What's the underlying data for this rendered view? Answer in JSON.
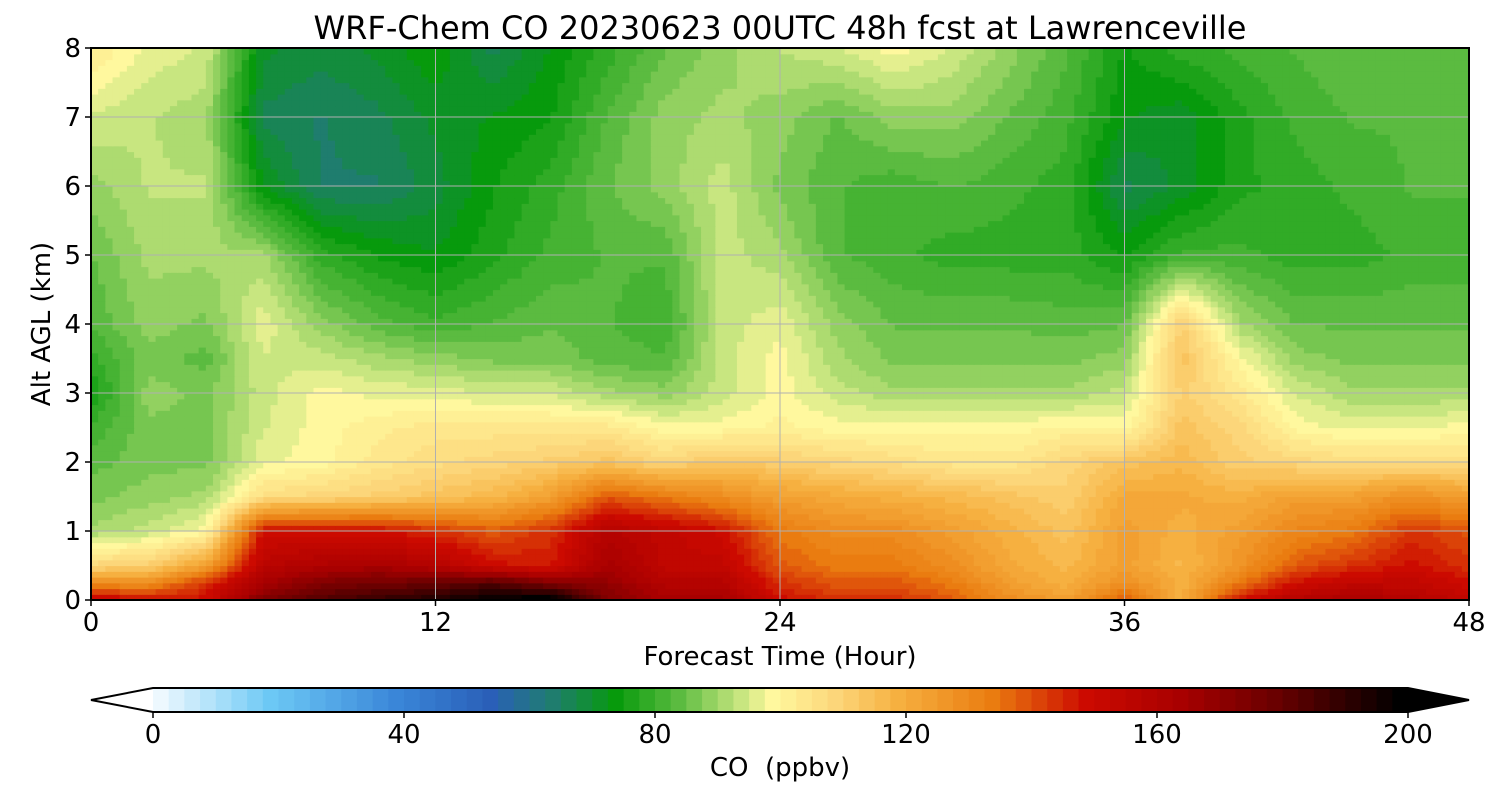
{
  "chart_data": {
    "type": "heatmap",
    "title": "WRF-Chem CO  20230623 00UTC 48h fcst at Lawrenceville",
    "xlabel": "Forecast Time (Hour)",
    "ylabel": "Alt AGL (km)",
    "xlim": [
      0,
      48
    ],
    "ylim": [
      0,
      8
    ],
    "xticks": [
      0,
      12,
      24,
      36,
      48
    ],
    "yticks": [
      0,
      1,
      2,
      3,
      4,
      5,
      6,
      7,
      8
    ],
    "grid": true,
    "colorbar": {
      "label": "CO  (ppbv)",
      "min": 0,
      "max": 200,
      "ticks": [
        0,
        40,
        80,
        120,
        160,
        200
      ],
      "extend": "both",
      "stops": [
        {
          "v": 0,
          "c": "#ffffff"
        },
        {
          "v": 20,
          "c": "#6cc8f5"
        },
        {
          "v": 40,
          "c": "#3a86d8"
        },
        {
          "v": 55,
          "c": "#2a5fb8"
        },
        {
          "v": 65,
          "c": "#1f7d6e"
        },
        {
          "v": 75,
          "c": "#079a0c"
        },
        {
          "v": 85,
          "c": "#5bbb40"
        },
        {
          "v": 95,
          "c": "#c8e680"
        },
        {
          "v": 100,
          "c": "#fff89e"
        },
        {
          "v": 110,
          "c": "#fcd67a"
        },
        {
          "v": 120,
          "c": "#f6b040"
        },
        {
          "v": 135,
          "c": "#ea7c10"
        },
        {
          "v": 150,
          "c": "#cc0a00"
        },
        {
          "v": 165,
          "c": "#a80000"
        },
        {
          "v": 180,
          "c": "#6a0000"
        },
        {
          "v": 200,
          "c": "#000000"
        }
      ]
    },
    "hours": [
      0,
      2,
      4,
      6,
      8,
      10,
      12,
      14,
      16,
      18,
      20,
      22,
      24,
      26,
      28,
      30,
      32,
      34,
      36,
      38,
      40,
      42,
      44,
      46,
      48
    ],
    "altitudes_km": [
      0,
      0.25,
      0.5,
      1,
      1.5,
      2,
      2.5,
      3,
      3.5,
      4,
      5,
      6,
      7,
      8
    ],
    "values_ppbv": [
      [
        155,
        150,
        150,
        175,
        185,
        190,
        195,
        200,
        205,
        175,
        165,
        165,
        150,
        145,
        145,
        140,
        130,
        125,
        140,
        120,
        150,
        160,
        165,
        160,
        155
      ],
      [
        130,
        130,
        145,
        165,
        175,
        178,
        180,
        185,
        175,
        170,
        160,
        160,
        145,
        140,
        140,
        135,
        125,
        120,
        130,
        120,
        135,
        150,
        155,
        155,
        150
      ],
      [
        110,
        112,
        125,
        158,
        162,
        165,
        160,
        150,
        148,
        165,
        155,
        155,
        140,
        135,
        135,
        130,
        122,
        118,
        125,
        118,
        128,
        140,
        145,
        150,
        145
      ],
      [
        92,
        95,
        100,
        150,
        150,
        150,
        145,
        140,
        145,
        160,
        155,
        150,
        135,
        130,
        130,
        125,
        120,
        115,
        125,
        120,
        125,
        132,
        135,
        145,
        140
      ],
      [
        88,
        90,
        92,
        108,
        110,
        112,
        115,
        118,
        125,
        140,
        135,
        130,
        125,
        122,
        120,
        118,
        115,
        112,
        122,
        122,
        120,
        125,
        125,
        130,
        125
      ],
      [
        85,
        88,
        88,
        98,
        100,
        105,
        108,
        110,
        112,
        115,
        110,
        115,
        112,
        110,
        108,
        105,
        105,
        110,
        115,
        118,
        112,
        110,
        108,
        108,
        108
      ],
      [
        82,
        88,
        88,
        96,
        100,
        103,
        105,
        105,
        105,
        105,
        100,
        100,
        102,
        100,
        100,
        100,
        100,
        102,
        100,
        115,
        110,
        100,
        98,
        98,
        100
      ],
      [
        76,
        90,
        88,
        95,
        100,
        98,
        98,
        96,
        96,
        92,
        90,
        95,
        100,
        95,
        92,
        92,
        92,
        92,
        95,
        112,
        105,
        96,
        92,
        92,
        92
      ],
      [
        80,
        88,
        85,
        96,
        95,
        92,
        90,
        88,
        88,
        85,
        84,
        95,
        100,
        92,
        88,
        88,
        88,
        88,
        90,
        115,
        100,
        90,
        88,
        88,
        88
      ],
      [
        84,
        90,
        88,
        98,
        90,
        85,
        82,
        84,
        86,
        84,
        82,
        95,
        98,
        90,
        86,
        86,
        86,
        85,
        86,
        112,
        92,
        86,
        86,
        86,
        86
      ],
      [
        86,
        92,
        92,
        92,
        80,
        76,
        74,
        78,
        82,
        84,
        84,
        95,
        92,
        84,
        82,
        80,
        80,
        80,
        76,
        82,
        82,
        80,
        80,
        82,
        82
      ],
      [
        90,
        94,
        94,
        74,
        66,
        66,
        70,
        76,
        80,
        86,
        90,
        95,
        88,
        84,
        82,
        84,
        82,
        80,
        68,
        72,
        78,
        80,
        82,
        84,
        84
      ],
      [
        96,
        94,
        92,
        68,
        66,
        68,
        72,
        74,
        76,
        84,
        90,
        92,
        90,
        86,
        90,
        90,
        86,
        82,
        74,
        72,
        78,
        82,
        84,
        84,
        84
      ],
      [
        104,
        98,
        96,
        72,
        70,
        72,
        76,
        68,
        74,
        80,
        86,
        90,
        94,
        96,
        100,
        96,
        90,
        84,
        76,
        80,
        82,
        84,
        86,
        86,
        86
      ]
    ]
  }
}
